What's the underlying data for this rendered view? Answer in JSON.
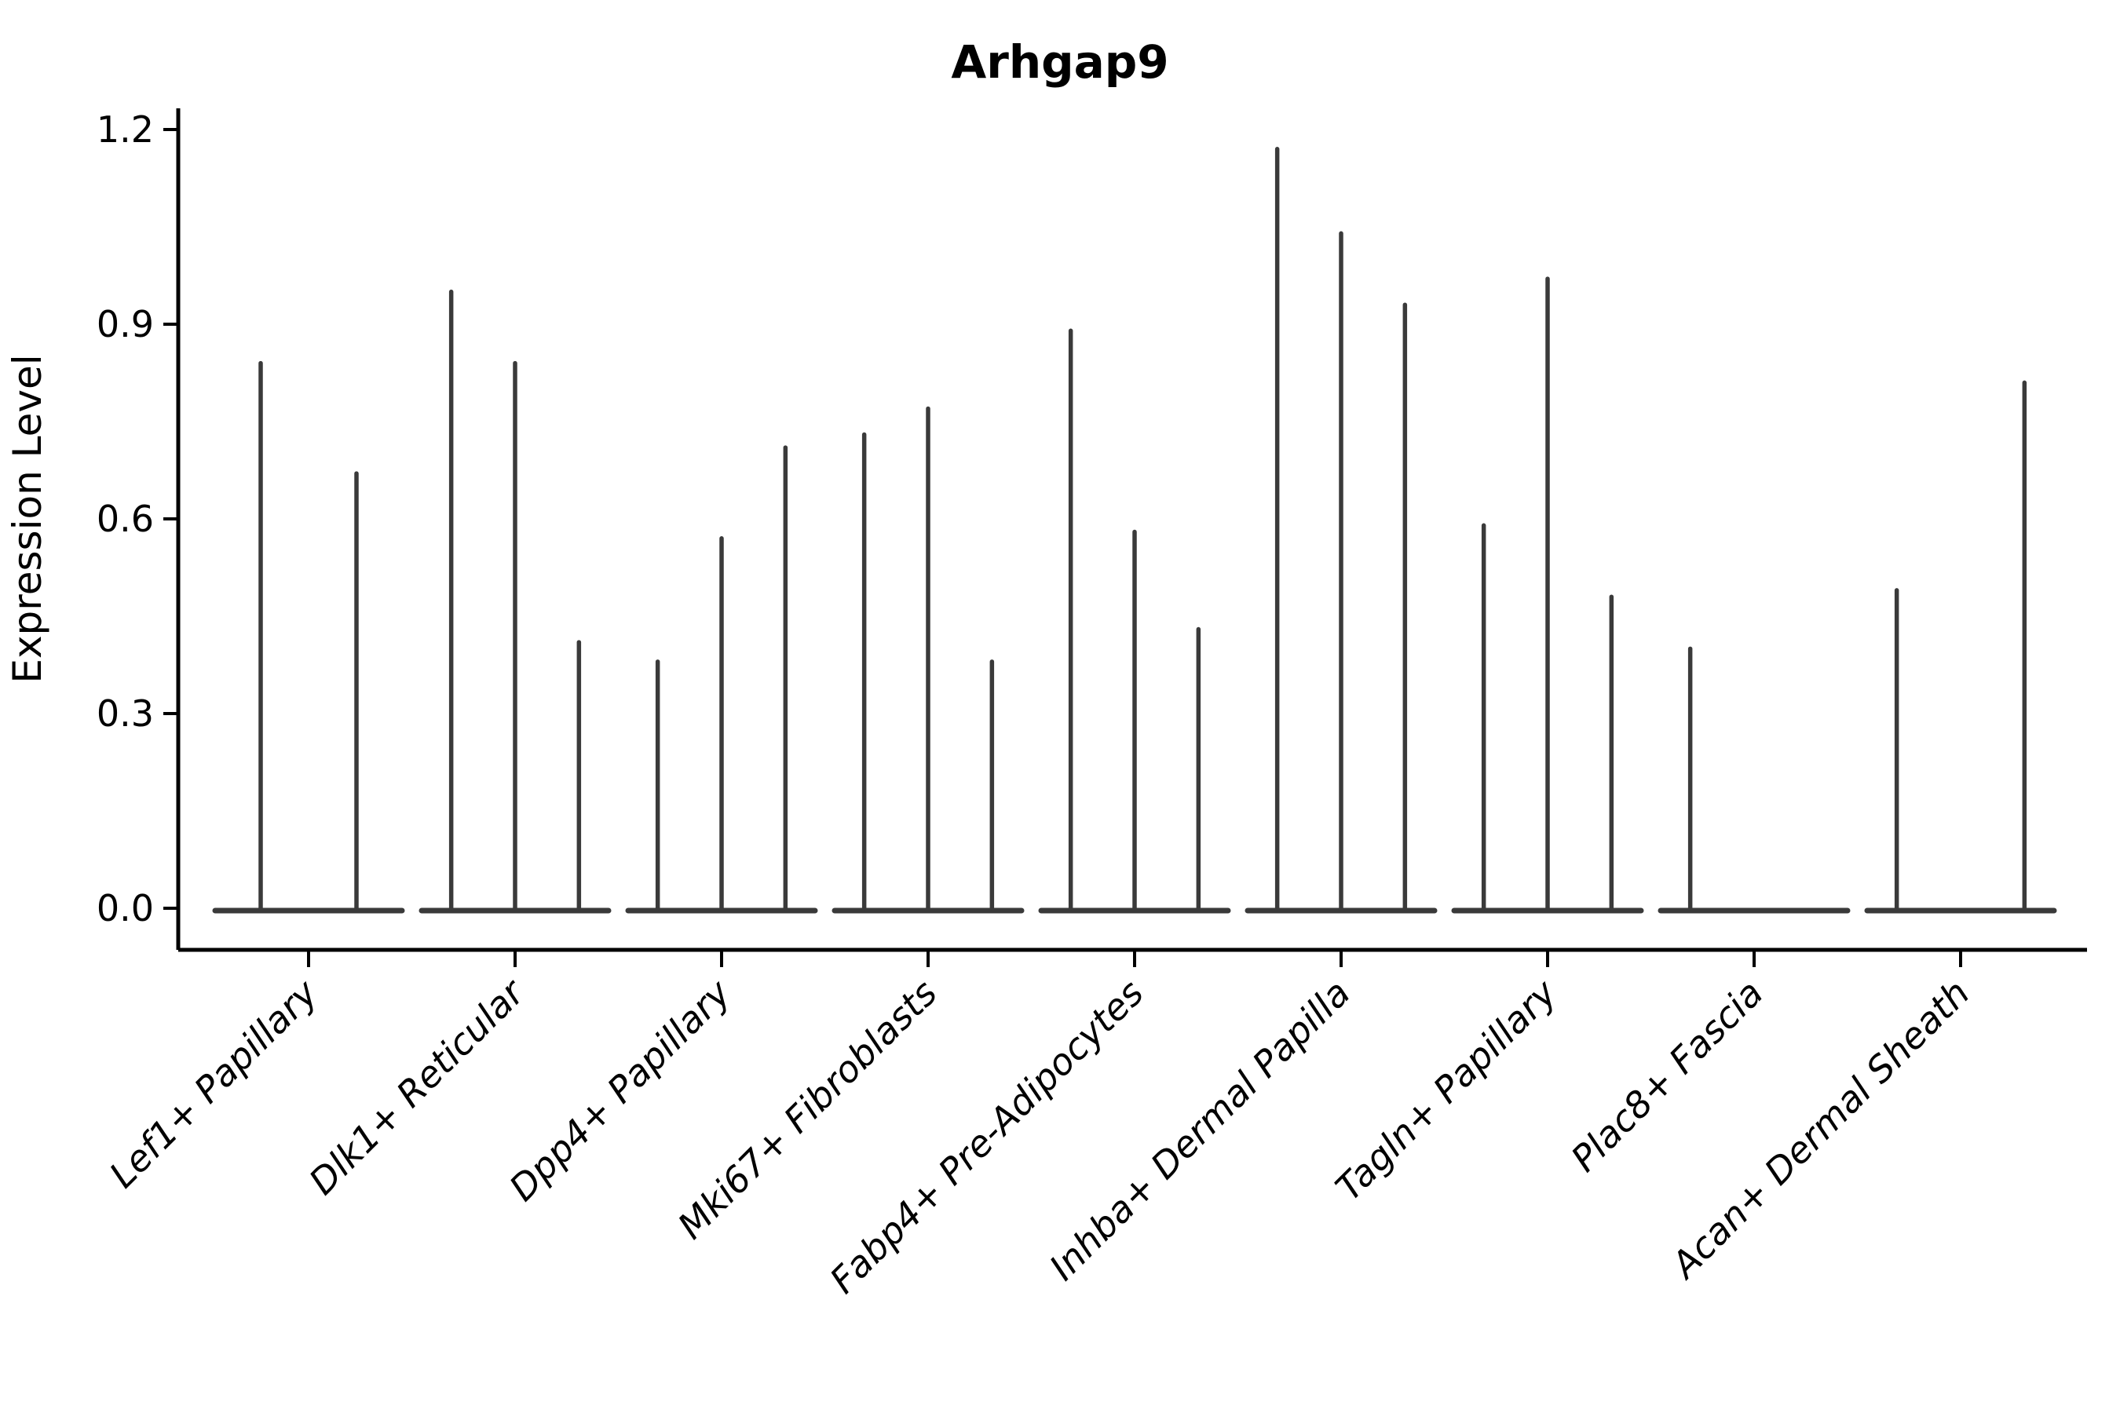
{
  "title": "Arhgap9",
  "y_axis": {
    "label": "Expression Level",
    "tick_labels": [
      "0.0",
      "0.3",
      "0.6",
      "0.9",
      "1.2"
    ]
  },
  "chart_data": {
    "type": "violin",
    "title": "Arhgap9",
    "xlabel": "",
    "ylabel": "Expression Level",
    "ylim": [
      0,
      1.2
    ],
    "yticks": [
      0.0,
      0.3,
      0.6,
      0.9,
      1.2
    ],
    "grid": false,
    "legend": "none",
    "style_note": "needle violins: wide flat base at 0 with a thin spike to the max expression value; 0 means a flat violin with no spike; categories with 2 values have 2 wider violins",
    "categories": [
      "Lef1+ Papillary",
      "Dlk1+ Reticular",
      "Dpp4+ Papillary",
      "Mki67+ Fibroblasts",
      "Fabp4+ Pre-Adipocytes",
      "Inhba+ Dermal Papilla",
      "Tagln+ Papillary",
      "Plac8+ Fascia",
      "Acan+ Dermal Sheath"
    ],
    "groups": [
      {
        "category": "Lef1+ Papillary",
        "violin_max_values": [
          0.84,
          0.67
        ]
      },
      {
        "category": "Dlk1+ Reticular",
        "violin_max_values": [
          0.95,
          0.84,
          0.41
        ]
      },
      {
        "category": "Dpp4+ Papillary",
        "violin_max_values": [
          0.38,
          0.57,
          0.71
        ]
      },
      {
        "category": "Mki67+ Fibroblasts",
        "violin_max_values": [
          0.73,
          0.77,
          0.38
        ]
      },
      {
        "category": "Fabp4+ Pre-Adipocytes",
        "violin_max_values": [
          0.89,
          0.58,
          0.43
        ]
      },
      {
        "category": "Inhba+ Dermal Papilla",
        "violin_max_values": [
          1.17,
          1.04,
          0.93
        ]
      },
      {
        "category": "Tagln+ Papillary",
        "violin_max_values": [
          0.59,
          0.97,
          0.48
        ]
      },
      {
        "category": "Plac8+ Fascia",
        "violin_max_values": [
          0.4,
          0,
          0
        ]
      },
      {
        "category": "Acan+ Dermal Sheath",
        "violin_max_values": [
          0.49,
          0,
          0.81
        ]
      }
    ],
    "colors": {
      "violin": "#3a3a3a",
      "axis": "#000000",
      "text": "#000000",
      "background": "#ffffff"
    }
  }
}
